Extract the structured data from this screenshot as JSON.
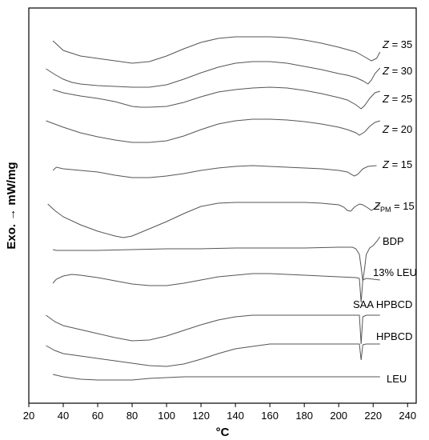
{
  "chart_data": {
    "type": "line",
    "title": "",
    "xlabel": "°C",
    "ylabel": "Exo. → mW/mg",
    "xlim": [
      20,
      245
    ],
    "xticks": [
      20,
      40,
      60,
      80,
      100,
      120,
      140,
      160,
      180,
      200,
      220,
      240
    ],
    "y_ticks_shown": false,
    "grid": false,
    "legend": "inline labels at right of curves",
    "series": [
      {
        "name": "Z = 35",
        "name_italic": "Z",
        "name_rest": " = 35",
        "points": [
          [
            34,
            -6
          ],
          [
            40,
            -18
          ],
          [
            50,
            -25
          ],
          [
            60,
            -28
          ],
          [
            70,
            -31
          ],
          [
            80,
            -34
          ],
          [
            90,
            -32
          ],
          [
            100,
            -25
          ],
          [
            110,
            -16
          ],
          [
            120,
            -8
          ],
          [
            130,
            -3
          ],
          [
            140,
            -1
          ],
          [
            150,
            -1
          ],
          [
            160,
            -1
          ],
          [
            170,
            -2
          ],
          [
            180,
            -5
          ],
          [
            190,
            -9
          ],
          [
            200,
            -14
          ],
          [
            210,
            -20
          ],
          [
            215,
            -26
          ],
          [
            219,
            -31
          ],
          [
            222,
            -28
          ],
          [
            224,
            -20
          ]
        ]
      },
      {
        "name": "Z = 30",
        "name_italic": "Z",
        "name_rest": " = 30",
        "points": [
          [
            30,
            -11
          ],
          [
            35,
            -18
          ],
          [
            40,
            -24
          ],
          [
            45,
            -28
          ],
          [
            50,
            -30
          ],
          [
            60,
            -32
          ],
          [
            70,
            -33
          ],
          [
            80,
            -34
          ],
          [
            90,
            -34
          ],
          [
            100,
            -31
          ],
          [
            110,
            -24
          ],
          [
            120,
            -16
          ],
          [
            130,
            -9
          ],
          [
            140,
            -4
          ],
          [
            150,
            -2
          ],
          [
            160,
            -2
          ],
          [
            170,
            -4
          ],
          [
            180,
            -8
          ],
          [
            190,
            -12
          ],
          [
            200,
            -17
          ],
          [
            205,
            -19
          ],
          [
            210,
            -22
          ],
          [
            214,
            -26
          ],
          [
            217,
            -30
          ],
          [
            219,
            -25
          ],
          [
            221,
            -17
          ],
          [
            224,
            -10
          ]
        ]
      },
      {
        "name": "Z = 25",
        "name_italic": "Z",
        "name_rest": " = 25",
        "points": [
          [
            34,
            -5
          ],
          [
            40,
            -9
          ],
          [
            50,
            -13
          ],
          [
            60,
            -16
          ],
          [
            70,
            -20
          ],
          [
            80,
            -26
          ],
          [
            85,
            -27
          ],
          [
            90,
            -27
          ],
          [
            100,
            -26
          ],
          [
            110,
            -21
          ],
          [
            120,
            -14
          ],
          [
            130,
            -8
          ],
          [
            140,
            -5
          ],
          [
            150,
            -3
          ],
          [
            160,
            -2
          ],
          [
            170,
            -3
          ],
          [
            180,
            -6
          ],
          [
            190,
            -10
          ],
          [
            200,
            -15
          ],
          [
            205,
            -18
          ],
          [
            210,
            -24
          ],
          [
            213,
            -29
          ],
          [
            215,
            -25
          ],
          [
            218,
            -16
          ],
          [
            221,
            -9
          ],
          [
            224,
            -7
          ]
        ]
      },
      {
        "name": "Z = 20",
        "name_italic": "Z",
        "name_rest": " = 20",
        "points": [
          [
            30,
            -6
          ],
          [
            35,
            -10
          ],
          [
            40,
            -14
          ],
          [
            50,
            -21
          ],
          [
            60,
            -26
          ],
          [
            70,
            -30
          ],
          [
            80,
            -33
          ],
          [
            90,
            -33
          ],
          [
            100,
            -31
          ],
          [
            110,
            -25
          ],
          [
            120,
            -17
          ],
          [
            130,
            -10
          ],
          [
            140,
            -6
          ],
          [
            150,
            -4
          ],
          [
            160,
            -4
          ],
          [
            170,
            -5
          ],
          [
            180,
            -7
          ],
          [
            190,
            -10
          ],
          [
            200,
            -14
          ],
          [
            205,
            -17
          ],
          [
            210,
            -21
          ],
          [
            212,
            -24
          ],
          [
            215,
            -20
          ],
          [
            218,
            -13
          ],
          [
            221,
            -8
          ],
          [
            224,
            -6
          ]
        ]
      },
      {
        "name": "Z = 15",
        "name_italic": "Z",
        "name_rest": " = 15",
        "points": [
          [
            34,
            -6
          ],
          [
            36,
            -2
          ],
          [
            40,
            -4
          ],
          [
            50,
            -6
          ],
          [
            60,
            -8
          ],
          [
            70,
            -12
          ],
          [
            80,
            -15
          ],
          [
            90,
            -15
          ],
          [
            100,
            -13
          ],
          [
            110,
            -10
          ],
          [
            120,
            -6
          ],
          [
            130,
            -3
          ],
          [
            140,
            -1
          ],
          [
            150,
            0
          ],
          [
            160,
            -1
          ],
          [
            170,
            -2
          ],
          [
            180,
            -3
          ],
          [
            190,
            -4
          ],
          [
            200,
            -6
          ],
          [
            205,
            -8
          ],
          [
            209,
            -13
          ],
          [
            211,
            -11
          ],
          [
            214,
            -4
          ],
          [
            217,
            -1
          ],
          [
            222,
            0
          ]
        ]
      },
      {
        "name": "ZPM = 15",
        "name_italic": "Z",
        "name_sub": "PM",
        "name_rest": " = 15",
        "points": [
          [
            31,
            -5
          ],
          [
            35,
            -13
          ],
          [
            40,
            -21
          ],
          [
            50,
            -31
          ],
          [
            60,
            -39
          ],
          [
            70,
            -45
          ],
          [
            75,
            -47
          ],
          [
            80,
            -45
          ],
          [
            90,
            -36
          ],
          [
            100,
            -27
          ],
          [
            110,
            -17
          ],
          [
            120,
            -8
          ],
          [
            130,
            -4
          ],
          [
            140,
            -3
          ],
          [
            150,
            -3
          ],
          [
            160,
            -3
          ],
          [
            170,
            -3
          ],
          [
            180,
            -3
          ],
          [
            190,
            -4
          ],
          [
            200,
            -6
          ],
          [
            203,
            -9
          ],
          [
            205,
            -13
          ],
          [
            207,
            -14
          ],
          [
            209,
            -9
          ],
          [
            212,
            -5
          ],
          [
            214,
            -6
          ],
          [
            217,
            -10
          ],
          [
            219,
            -13
          ],
          [
            222,
            -9
          ],
          [
            224,
            -6
          ]
        ]
      },
      {
        "name": "BDP",
        "points": [
          [
            34,
            -6
          ],
          [
            36,
            -7
          ],
          [
            60,
            -7
          ],
          [
            80,
            -6
          ],
          [
            100,
            -5
          ],
          [
            120,
            -5
          ],
          [
            140,
            -4
          ],
          [
            160,
            -4
          ],
          [
            180,
            -4
          ],
          [
            200,
            -3
          ],
          [
            208,
            -3
          ],
          [
            210,
            -5
          ],
          [
            212,
            -12
          ],
          [
            213,
            -28
          ],
          [
            214,
            -45
          ],
          [
            215,
            -30
          ],
          [
            216,
            -12
          ],
          [
            218,
            -4
          ],
          [
            220,
            -1
          ],
          [
            222,
            4
          ],
          [
            224,
            10
          ]
        ]
      },
      {
        "name": "13% LEU",
        "points": [
          [
            34,
            -12
          ],
          [
            36,
            -7
          ],
          [
            40,
            -3
          ],
          [
            45,
            -1
          ],
          [
            50,
            -2
          ],
          [
            60,
            -5
          ],
          [
            70,
            -9
          ],
          [
            80,
            -13
          ],
          [
            90,
            -15
          ],
          [
            100,
            -15
          ],
          [
            110,
            -12
          ],
          [
            120,
            -8
          ],
          [
            130,
            -4
          ],
          [
            140,
            -2
          ],
          [
            150,
            0
          ],
          [
            160,
            0
          ],
          [
            170,
            -1
          ],
          [
            180,
            -2
          ],
          [
            190,
            -3
          ],
          [
            200,
            -4
          ],
          [
            210,
            -5
          ],
          [
            212,
            -6
          ],
          [
            213,
            -36
          ],
          [
            214,
            -8
          ],
          [
            216,
            -6
          ],
          [
            220,
            -7
          ],
          [
            224,
            -8
          ]
        ]
      },
      {
        "name": "SAA HPBCD",
        "points": [
          [
            30,
            -4
          ],
          [
            35,
            -12
          ],
          [
            40,
            -17
          ],
          [
            50,
            -22
          ],
          [
            60,
            -27
          ],
          [
            70,
            -32
          ],
          [
            80,
            -36
          ],
          [
            90,
            -35
          ],
          [
            100,
            -30
          ],
          [
            110,
            -23
          ],
          [
            120,
            -16
          ],
          [
            130,
            -10
          ],
          [
            140,
            -6
          ],
          [
            150,
            -4
          ],
          [
            160,
            -4
          ],
          [
            170,
            -4
          ],
          [
            180,
            -4
          ],
          [
            190,
            -4
          ],
          [
            200,
            -4
          ],
          [
            210,
            -4
          ],
          [
            212,
            -4
          ],
          [
            213,
            -40
          ],
          [
            214,
            -6
          ],
          [
            216,
            -4
          ],
          [
            224,
            -4
          ]
        ]
      },
      {
        "name": "HPBCD",
        "points": [
          [
            30,
            -4
          ],
          [
            35,
            -10
          ],
          [
            40,
            -14
          ],
          [
            50,
            -17
          ],
          [
            60,
            -20
          ],
          [
            70,
            -23
          ],
          [
            80,
            -26
          ],
          [
            90,
            -29
          ],
          [
            100,
            -30
          ],
          [
            110,
            -27
          ],
          [
            120,
            -21
          ],
          [
            130,
            -14
          ],
          [
            140,
            -8
          ],
          [
            150,
            -5
          ],
          [
            160,
            -2
          ],
          [
            170,
            -2
          ],
          [
            180,
            -2
          ],
          [
            190,
            -2
          ],
          [
            200,
            -2
          ],
          [
            210,
            -2
          ],
          [
            212,
            -2
          ],
          [
            213,
            -22
          ],
          [
            214,
            -3
          ],
          [
            216,
            -2
          ],
          [
            224,
            -2
          ]
        ]
      },
      {
        "name": "LEU",
        "points": [
          [
            34,
            -3
          ],
          [
            40,
            -6
          ],
          [
            50,
            -9
          ],
          [
            60,
            -10
          ],
          [
            70,
            -10
          ],
          [
            80,
            -10
          ],
          [
            90,
            -8
          ],
          [
            100,
            -7
          ],
          [
            110,
            -6
          ],
          [
            120,
            -6
          ],
          [
            140,
            -6
          ],
          [
            160,
            -6
          ],
          [
            180,
            -6
          ],
          [
            200,
            -6
          ],
          [
            210,
            -6
          ],
          [
            224,
            -6
          ]
        ]
      }
    ]
  }
}
